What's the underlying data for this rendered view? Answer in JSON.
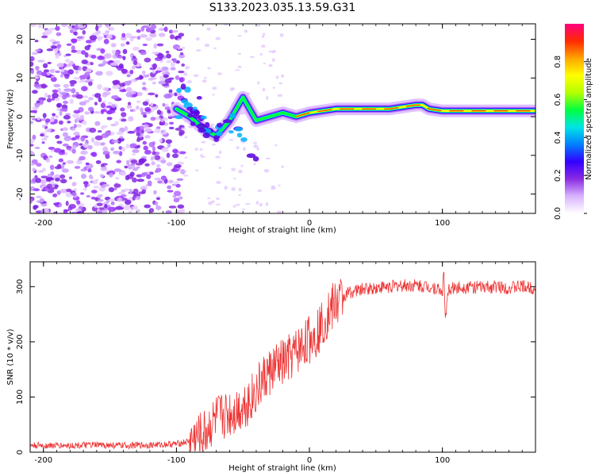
{
  "figure_title": "S133.2023.035.13.59.G31",
  "chart_data": [
    {
      "type": "heatmap",
      "title": "S133.2023.035.13.59.G31",
      "xlabel": "Height of straight line (km)",
      "ylabel": "Frequency (Hz)",
      "xlim": [
        -210,
        170
      ],
      "ylim": [
        -25,
        24
      ],
      "xticks": [
        -200,
        -100,
        0,
        100
      ],
      "yticks": [
        -20,
        -10,
        0,
        10,
        20
      ],
      "colorbar": {
        "label": "Normalized spectral amplitude",
        "range": [
          0.0,
          1.0
        ],
        "ticks": [
          0.0,
          0.2,
          0.4,
          0.6,
          0.8
        ],
        "colors": [
          "#ffffff",
          "#d9b3ff",
          "#8a2be2",
          "#3300ff",
          "#0080ff",
          "#00e5e5",
          "#00ff40",
          "#b3ff00",
          "#ffff00",
          "#ffa500",
          "#ff2a00",
          "#ff0080"
        ]
      },
      "ridge": {
        "name": "signal ridge",
        "x": [
          -100,
          -90,
          -80,
          -70,
          -60,
          -50,
          -45,
          -40,
          -30,
          -20,
          -10,
          0,
          20,
          40,
          60,
          70,
          80,
          85,
          90,
          100,
          120,
          140,
          170
        ],
        "y": [
          2,
          0,
          -3,
          -5,
          -1,
          5,
          2,
          -1,
          0,
          1,
          0,
          1,
          2,
          2,
          2,
          2.5,
          3,
          3,
          2,
          1.5,
          1.5,
          1.5,
          1.5
        ]
      }
    },
    {
      "type": "line",
      "xlabel": "Height of straight line (km)",
      "ylabel": "SNR (10 * v/v)",
      "xlim": [
        -210,
        170
      ],
      "ylim": [
        0,
        345
      ],
      "xticks": [
        -200,
        -100,
        0,
        100
      ],
      "yticks": [
        0,
        100,
        200,
        300
      ],
      "series": [
        {
          "name": "SNR",
          "color": "#ee3333",
          "x": [
            -210,
            -200,
            -180,
            -160,
            -140,
            -120,
            -100,
            -90,
            -80,
            -75,
            -70,
            -65,
            -60,
            -55,
            -50,
            -45,
            -40,
            -35,
            -30,
            -25,
            -20,
            -15,
            -10,
            -5,
            0,
            5,
            10,
            15,
            20,
            25,
            30,
            40,
            50,
            60,
            70,
            80,
            90,
            95,
            100,
            101,
            102,
            105,
            110,
            120,
            130,
            140,
            150,
            160,
            170
          ],
          "y": [
            12,
            12,
            12,
            13,
            12,
            13,
            15,
            20,
            30,
            45,
            60,
            65,
            70,
            75,
            85,
            95,
            110,
            130,
            145,
            155,
            160,
            170,
            180,
            195,
            205,
            215,
            235,
            255,
            270,
            280,
            290,
            295,
            298,
            300,
            302,
            302,
            300,
            298,
            290,
            330,
            245,
            295,
            298,
            300,
            298,
            300,
            298,
            300,
            297
          ]
        }
      ]
    }
  ]
}
